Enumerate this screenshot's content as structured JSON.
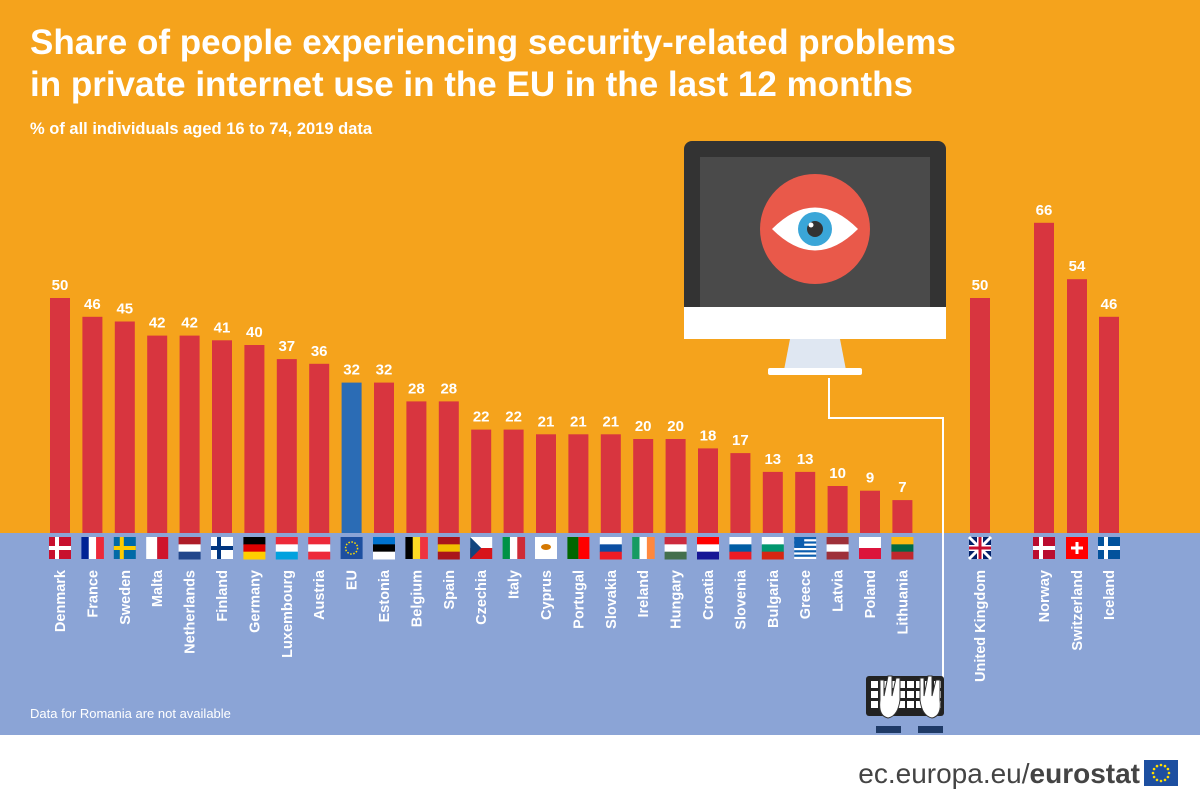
{
  "header": {
    "title_line1": "Share of people experiencing security-related problems",
    "title_line2": "in private internet use in the EU in the last 12 months",
    "subtitle": "% of all individuals aged 16 to 74, 2019 data"
  },
  "note": "Data for Romania are not available",
  "footer": {
    "domain": "ec.europa.eu/",
    "brand": "eurostat"
  },
  "colors": {
    "background_top": "#f5a31c",
    "background_bottom": "#8ba4d6",
    "bar": "#d8353f",
    "bar_eu": "#2b6cb5",
    "monitor": "#333333",
    "screen": "#4a4a4a",
    "eye_circle": "#e9594a",
    "text": "#ffffff"
  },
  "icons": [
    "monitor-icon",
    "eye-icon",
    "keyboard-icon",
    "hands-icon",
    "eu-flag-icon"
  ],
  "chart_data": {
    "type": "bar",
    "categories": [
      "Denmark",
      "France",
      "Sweden",
      "Malta",
      "Netherlands",
      "Finland",
      "Germany",
      "Luxembourg",
      "Austria",
      "EU",
      "Estonia",
      "Belgium",
      "Spain",
      "Czechia",
      "Italy",
      "Cyprus",
      "Portugal",
      "Slovakia",
      "Ireland",
      "Hungary",
      "Croatia",
      "Slovenia",
      "Bulgaria",
      "Greece",
      "Latvia",
      "Poland",
      "Lithuania",
      "United Kingdom",
      "Norway",
      "Switzerland",
      "Iceland"
    ],
    "values": [
      50,
      46,
      45,
      42,
      42,
      41,
      40,
      37,
      36,
      32,
      32,
      28,
      28,
      22,
      22,
      21,
      21,
      21,
      20,
      20,
      18,
      17,
      13,
      13,
      10,
      9,
      7,
      50,
      66,
      54,
      46
    ],
    "title": "Share of people experiencing security-related problems in private internet use in the EU in the last 12 months",
    "subtitle": "% of all individuals aged 16 to 74, 2019 data",
    "xlabel": "",
    "ylabel": "",
    "ylim": [
      0,
      66
    ],
    "grid": false,
    "legend": "none",
    "highlight": "EU"
  }
}
